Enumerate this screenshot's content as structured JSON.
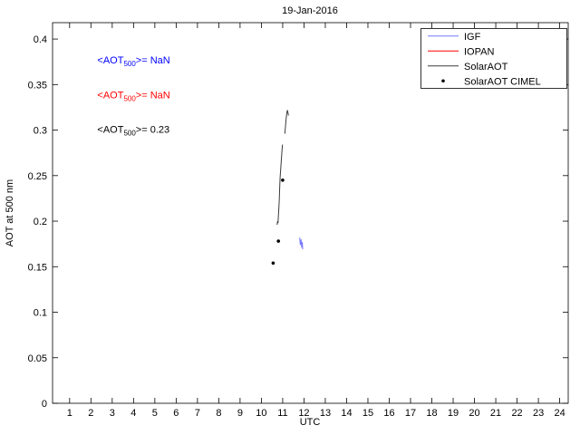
{
  "chart_data": {
    "type": "line",
    "title": "19-Jan-2016",
    "xlabel": "UTC",
    "ylabel": "AOT at 500 nm",
    "xlim": [
      0.2,
      24.4
    ],
    "ylim": [
      0,
      0.418
    ],
    "grid": false,
    "xticks": {
      "values": [
        1,
        2,
        3,
        4,
        5,
        6,
        7,
        8,
        9,
        10,
        11,
        12,
        13,
        14,
        15,
        16,
        17,
        18,
        19,
        20,
        21,
        22,
        23,
        24
      ],
      "labels": [
        "1",
        "2",
        "3",
        "4",
        "5",
        "6",
        "7",
        "8",
        "9",
        "10",
        "11",
        "12",
        "13",
        "14",
        "15",
        "16",
        "17",
        "18",
        "19",
        "20",
        "21",
        "22",
        "23",
        "24"
      ]
    },
    "yticks": {
      "values": [
        0,
        0.05,
        0.1,
        0.15,
        0.2,
        0.25,
        0.3,
        0.35,
        0.4
      ],
      "labels": [
        "0",
        "0.05",
        "0.1",
        "0.15",
        "0.2",
        "0.25",
        "0.3",
        "0.35",
        "0.4"
      ]
    },
    "legend": {
      "position": "top-right",
      "items": [
        {
          "label": "IGF",
          "color": "#7777ff",
          "marker": "line"
        },
        {
          "label": "IOPAN",
          "color": "#ff0000",
          "marker": "line"
        },
        {
          "label": "SolarAOT",
          "color": "#3a3a3a",
          "marker": "line"
        },
        {
          "label": "SolarAOT CIMEL",
          "color": "#000000",
          "marker": "dot"
        }
      ]
    },
    "series": [
      {
        "name": "IGF",
        "color": "#7777ff",
        "segments": [
          [
            [
              11.8,
              0.182
            ],
            [
              11.83,
              0.174
            ],
            [
              11.86,
              0.18
            ],
            [
              11.89,
              0.171
            ],
            [
              11.92,
              0.177
            ],
            [
              11.94,
              0.169
            ]
          ]
        ]
      },
      {
        "name": "IOPAN",
        "color": "#ff0000",
        "segments": []
      },
      {
        "name": "SolarAOT",
        "color": "#3a3a3a",
        "segments": [
          [
            [
              10.74,
              0.196
            ],
            [
              10.76,
              0.2
            ],
            [
              10.78,
              0.198
            ],
            [
              10.8,
              0.206
            ],
            [
              10.82,
              0.214
            ],
            [
              10.84,
              0.224
            ],
            [
              10.86,
              0.236
            ],
            [
              10.88,
              0.248
            ],
            [
              10.91,
              0.258
            ],
            [
              10.94,
              0.268
            ],
            [
              10.97,
              0.278
            ],
            [
              10.99,
              0.284
            ]
          ],
          [
            [
              11.1,
              0.296
            ],
            [
              11.13,
              0.304
            ],
            [
              11.16,
              0.312
            ],
            [
              11.19,
              0.318
            ],
            [
              11.22,
              0.322
            ],
            [
              11.25,
              0.319
            ],
            [
              11.27,
              0.316
            ]
          ]
        ]
      }
    ],
    "scatter": {
      "name": "SolarAOT CIMEL",
      "color": "#000000",
      "points": [
        [
          10.55,
          0.154
        ],
        [
          10.8,
          0.178
        ],
        [
          11.0,
          0.245
        ]
      ]
    },
    "annotations": [
      {
        "pre": "<AOT",
        "sub": "500",
        "post": ">=  NaN",
        "color": "#0000ff",
        "x": 2.3,
        "y": 0.373
      },
      {
        "pre": "<AOT",
        "sub": "500",
        "post": ">=  NaN",
        "color": "#ff0000",
        "x": 2.3,
        "y": 0.335
      },
      {
        "pre": "<AOT",
        "sub": "500",
        "post": ">= 0.23",
        "color": "#000000",
        "x": 2.3,
        "y": 0.297
      }
    ]
  }
}
